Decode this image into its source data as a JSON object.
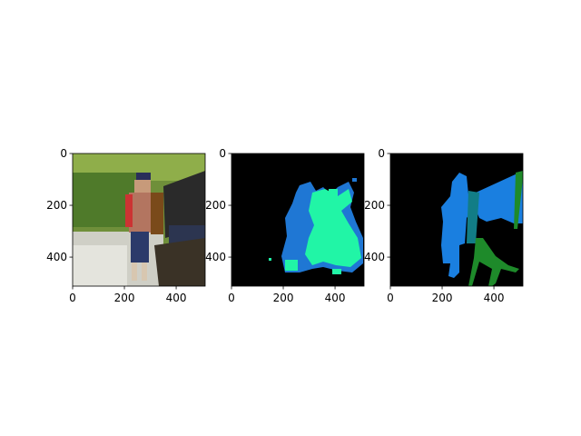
{
  "chart_data": [
    {
      "type": "image",
      "content": "photo",
      "x_ticks": [
        "0",
        "200",
        "400"
      ],
      "y_ticks": [
        "0",
        "200",
        "400"
      ],
      "xlim": [
        0,
        512
      ],
      "ylim": [
        512,
        0
      ]
    },
    {
      "type": "image",
      "content": "predicted-segmentation-mask",
      "x_ticks": [
        "0",
        "200",
        "400"
      ],
      "y_ticks": [
        "0",
        "200",
        "400"
      ],
      "xlim": [
        0,
        512
      ],
      "ylim": [
        512,
        0
      ],
      "colors": {
        "background": "#000000",
        "class_a": "#1f77d4",
        "class_b": "#21f5a6"
      }
    },
    {
      "type": "image",
      "content": "ground-truth-segmentation-mask",
      "x_ticks": [
        "0",
        "200",
        "400"
      ],
      "y_ticks": [
        "0",
        "200",
        "400"
      ],
      "xlim": [
        0,
        512
      ],
      "ylim": [
        512,
        0
      ],
      "colors": {
        "background": "#000000",
        "person": "#1a7fe0",
        "chair": "#1e8a2a",
        "bottle": "#127d86"
      }
    }
  ]
}
